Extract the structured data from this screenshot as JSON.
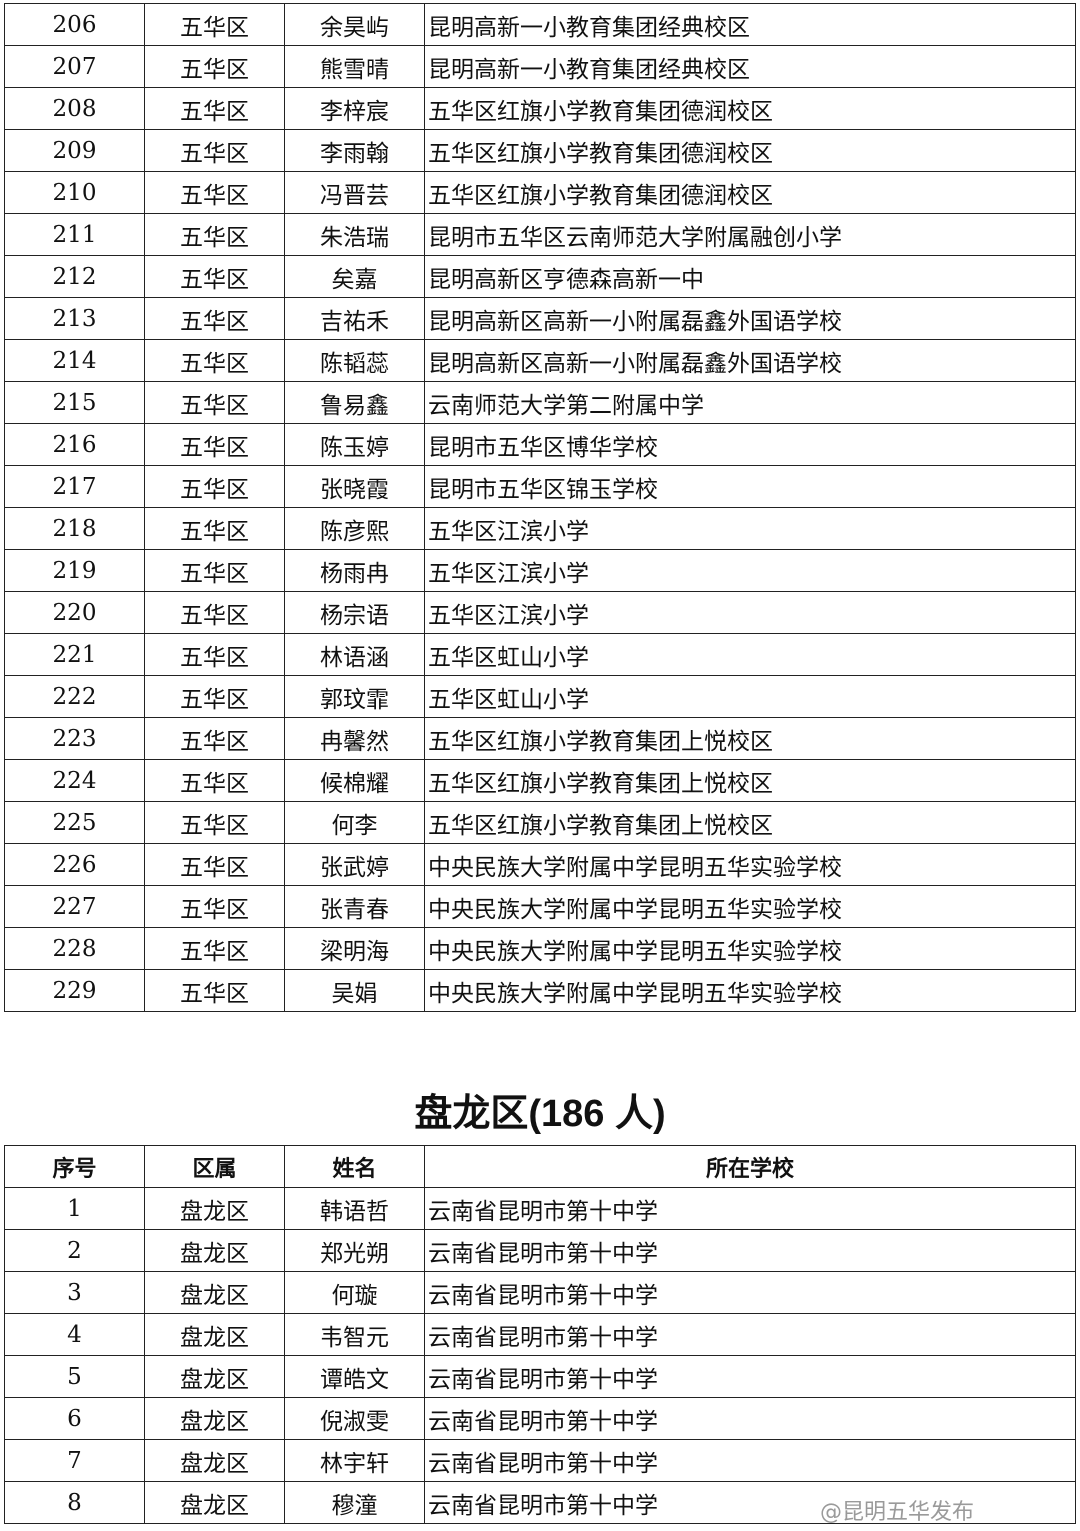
{
  "table1": {
    "rows": [
      [
        "206",
        "五华区",
        "余昊屿",
        "昆明高新一小教育集团经典校区"
      ],
      [
        "207",
        "五华区",
        "熊雪晴",
        "昆明高新一小教育集团经典校区"
      ],
      [
        "208",
        "五华区",
        "李梓宸",
        "五华区红旗小学教育集团德润校区"
      ],
      [
        "209",
        "五华区",
        "李雨翰",
        "五华区红旗小学教育集团德润校区"
      ],
      [
        "210",
        "五华区",
        "冯晋芸",
        "五华区红旗小学教育集团德润校区"
      ],
      [
        "211",
        "五华区",
        "朱浩瑞",
        "昆明市五华区云南师范大学附属融创小学"
      ],
      [
        "212",
        "五华区",
        "矣嘉",
        "昆明高新区亨德森高新一中"
      ],
      [
        "213",
        "五华区",
        "吉祐禾",
        "昆明高新区高新一小附属磊鑫外国语学校"
      ],
      [
        "214",
        "五华区",
        "陈韬蕊",
        "昆明高新区高新一小附属磊鑫外国语学校"
      ],
      [
        "215",
        "五华区",
        "鲁易鑫",
        "云南师范大学第二附属中学"
      ],
      [
        "216",
        "五华区",
        "陈玉婷",
        "昆明市五华区博华学校"
      ],
      [
        "217",
        "五华区",
        "张晓霞",
        "昆明市五华区锦玉学校"
      ],
      [
        "218",
        "五华区",
        "陈彦熙",
        "五华区江滨小学"
      ],
      [
        "219",
        "五华区",
        "杨雨冉",
        "五华区江滨小学"
      ],
      [
        "220",
        "五华区",
        "杨宗语",
        "五华区江滨小学"
      ],
      [
        "221",
        "五华区",
        "林语涵",
        "五华区虹山小学"
      ],
      [
        "222",
        "五华区",
        "郭玟霏",
        "五华区虹山小学"
      ],
      [
        "223",
        "五华区",
        "冉馨然",
        "五华区红旗小学教育集团上悦校区"
      ],
      [
        "224",
        "五华区",
        "候棉耀",
        "五华区红旗小学教育集团上悦校区"
      ],
      [
        "225",
        "五华区",
        "何李",
        "五华区红旗小学教育集团上悦校区"
      ],
      [
        "226",
        "五华区",
        "张武婷",
        "中央民族大学附属中学昆明五华实验学校"
      ],
      [
        "227",
        "五华区",
        "张青春",
        "中央民族大学附属中学昆明五华实验学校"
      ],
      [
        "228",
        "五华区",
        "梁明海",
        "中央民族大学附属中学昆明五华实验学校"
      ],
      [
        "229",
        "五华区",
        "吴娟",
        "中央民族大学附属中学昆明五华实验学校"
      ]
    ]
  },
  "section2": {
    "title": "盘龙区(186 人)",
    "headers": [
      "序号",
      "区属",
      "姓名",
      "所在学校"
    ],
    "rows": [
      [
        "1",
        "盘龙区",
        "韩语哲",
        "云南省昆明市第十中学"
      ],
      [
        "2",
        "盘龙区",
        "郑光朔",
        "云南省昆明市第十中学"
      ],
      [
        "3",
        "盘龙区",
        "何璇",
        "云南省昆明市第十中学"
      ],
      [
        "4",
        "盘龙区",
        "韦智元",
        "云南省昆明市第十中学"
      ],
      [
        "5",
        "盘龙区",
        "谭皓文",
        "云南省昆明市第十中学"
      ],
      [
        "6",
        "盘龙区",
        "倪淑雯",
        "云南省昆明市第十中学"
      ],
      [
        "7",
        "盘龙区",
        "林宇轩",
        "云南省昆明市第十中学"
      ],
      [
        "8",
        "盘龙区",
        "穆潼",
        "云南省昆明市第十中学"
      ]
    ]
  },
  "watermark": "@昆明五华发布"
}
